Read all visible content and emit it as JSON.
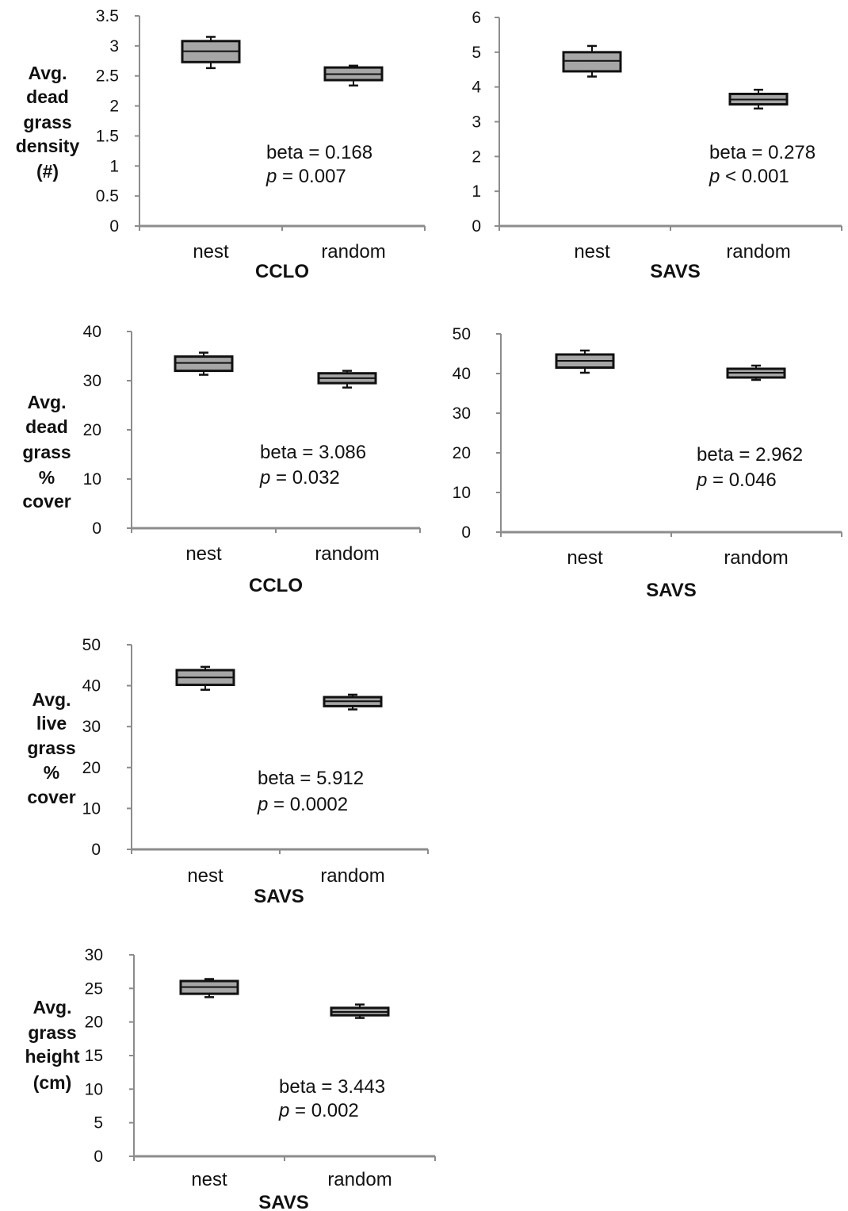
{
  "chart_data": [
    {
      "type": "box",
      "group_label": "CCLO",
      "ylabel_lines": [
        "Avg.",
        "dead",
        "grass",
        "density",
        "(#)"
      ],
      "yticks": [
        "0",
        "0.5",
        "1",
        "1.5",
        "2",
        "2.5",
        "3",
        "3.5"
      ],
      "ylim": [
        0,
        3.5
      ],
      "categories": [
        "nest",
        "random"
      ],
      "boxes": [
        {
          "category": "nest",
          "whisker_low": 2.63,
          "q1": 2.73,
          "median": 2.91,
          "q3": 3.08,
          "whisker_high": 3.15
        },
        {
          "category": "random",
          "whisker_low": 2.34,
          "q1": 2.43,
          "median": 2.53,
          "q3": 2.64,
          "whisker_high": 2.67
        }
      ],
      "annotation": {
        "beta": "beta = 0.168",
        "p_sym": "p",
        "p_rest": " = 0.007"
      }
    },
    {
      "type": "box",
      "group_label": "SAVS",
      "ylabel_lines": [],
      "yticks": [
        "0",
        "1",
        "2",
        "3",
        "4",
        "5",
        "6"
      ],
      "ylim": [
        0,
        6
      ],
      "categories": [
        "nest",
        "random"
      ],
      "boxes": [
        {
          "category": "nest",
          "whisker_low": 4.3,
          "q1": 4.45,
          "median": 4.75,
          "q3": 5.0,
          "whisker_high": 5.18
        },
        {
          "category": "random",
          "whisker_low": 3.38,
          "q1": 3.5,
          "median": 3.64,
          "q3": 3.8,
          "whisker_high": 3.92
        }
      ],
      "annotation": {
        "beta": "beta = 0.278",
        "p_sym": "p",
        "p_rest": " < 0.001"
      }
    },
    {
      "type": "box",
      "group_label": "CCLO",
      "ylabel_lines": [
        "Avg.",
        "dead",
        "grass",
        "%",
        "cover"
      ],
      "yticks": [
        "0",
        "10",
        "20",
        "30",
        "40"
      ],
      "ylim": [
        0,
        40
      ],
      "categories": [
        "nest",
        "random"
      ],
      "boxes": [
        {
          "category": "nest",
          "whisker_low": 31.2,
          "q1": 32.0,
          "median": 33.6,
          "q3": 34.9,
          "whisker_high": 35.7
        },
        {
          "category": "random",
          "whisker_low": 28.6,
          "q1": 29.5,
          "median": 30.5,
          "q3": 31.5,
          "whisker_high": 32.0
        }
      ],
      "annotation": {
        "beta": "beta = 3.086",
        "p_sym": "p",
        "p_rest": " = 0.032"
      }
    },
    {
      "type": "box",
      "group_label": "SAVS",
      "ylabel_lines": [],
      "yticks": [
        "0",
        "10",
        "20",
        "30",
        "40",
        "50"
      ],
      "ylim": [
        0,
        50
      ],
      "categories": [
        "nest",
        "random"
      ],
      "boxes": [
        {
          "category": "nest",
          "whisker_low": 40.2,
          "q1": 41.5,
          "median": 43.2,
          "q3": 44.8,
          "whisker_high": 45.8
        },
        {
          "category": "random",
          "whisker_low": 38.4,
          "q1": 39.0,
          "median": 40.2,
          "q3": 41.2,
          "whisker_high": 42.0
        }
      ],
      "annotation": {
        "beta": "beta = 2.962",
        "p_sym": "p",
        "p_rest": " = 0.046"
      }
    },
    {
      "type": "box",
      "group_label": "SAVS",
      "ylabel_lines": [
        "Avg.",
        "live",
        "grass",
        "%",
        "cover"
      ],
      "yticks": [
        "0",
        "10",
        "20",
        "30",
        "40",
        "50"
      ],
      "ylim": [
        0,
        50
      ],
      "categories": [
        "nest",
        "random"
      ],
      "boxes": [
        {
          "category": "nest",
          "whisker_low": 39.0,
          "q1": 40.2,
          "median": 42.0,
          "q3": 43.8,
          "whisker_high": 44.6
        },
        {
          "category": "random",
          "whisker_low": 34.2,
          "q1": 35.0,
          "median": 36.2,
          "q3": 37.2,
          "whisker_high": 37.8
        }
      ],
      "annotation": {
        "beta": "beta = 5.912",
        "p_sym": "p",
        "p_rest": " = 0.0002"
      }
    },
    {
      "type": "box",
      "group_label": "SAVS",
      "ylabel_lines": [
        "Avg.",
        "grass",
        "height",
        "(cm)"
      ],
      "yticks": [
        "0",
        "5",
        "10",
        "15",
        "20",
        "25",
        "30"
      ],
      "ylim": [
        0,
        30
      ],
      "categories": [
        "nest",
        "random"
      ],
      "boxes": [
        {
          "category": "nest",
          "whisker_low": 23.7,
          "q1": 24.2,
          "median": 25.2,
          "q3": 26.1,
          "whisker_high": 26.4
        },
        {
          "category": "random",
          "whisker_low": 20.6,
          "q1": 21.0,
          "median": 21.5,
          "q3": 22.1,
          "whisker_high": 22.6
        }
      ],
      "annotation": {
        "beta": "beta = 3.443",
        "p_sym": "p",
        "p_rest": " = 0.002"
      }
    }
  ]
}
